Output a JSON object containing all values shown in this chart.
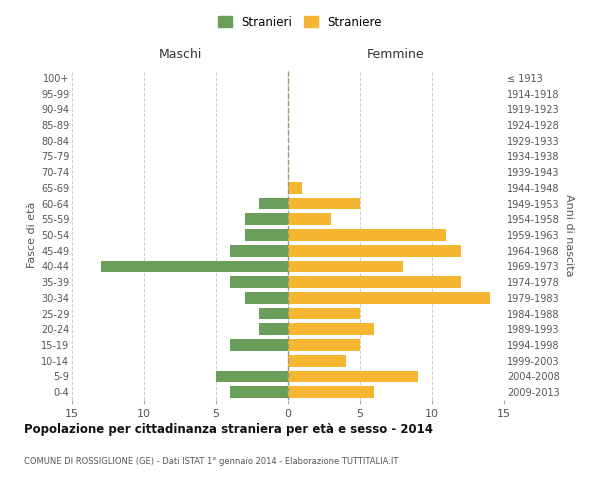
{
  "age_groups": [
    "0-4",
    "5-9",
    "10-14",
    "15-19",
    "20-24",
    "25-29",
    "30-34",
    "35-39",
    "40-44",
    "45-49",
    "50-54",
    "55-59",
    "60-64",
    "65-69",
    "70-74",
    "75-79",
    "80-84",
    "85-89",
    "90-94",
    "95-99",
    "100+"
  ],
  "birth_years": [
    "2009-2013",
    "2004-2008",
    "1999-2003",
    "1994-1998",
    "1989-1993",
    "1984-1988",
    "1979-1983",
    "1974-1978",
    "1969-1973",
    "1964-1968",
    "1959-1963",
    "1954-1958",
    "1949-1953",
    "1944-1948",
    "1939-1943",
    "1934-1938",
    "1929-1933",
    "1924-1928",
    "1919-1923",
    "1914-1918",
    "≤ 1913"
  ],
  "males": [
    4,
    5,
    0,
    4,
    2,
    2,
    3,
    4,
    13,
    4,
    3,
    3,
    2,
    0,
    0,
    0,
    0,
    0,
    0,
    0,
    0
  ],
  "females": [
    6,
    9,
    4,
    5,
    6,
    5,
    14,
    12,
    8,
    12,
    11,
    3,
    5,
    1,
    0,
    0,
    0,
    0,
    0,
    0,
    0
  ],
  "male_color": "#6a9e5b",
  "female_color": "#f5b731",
  "title": "Popolazione per cittadinanza straniera per età e sesso - 2014",
  "subtitle": "COMUNE DI ROSSIGLIONE (GE) - Dati ISTAT 1° gennaio 2014 - Elaborazione TUTTITALIA.IT",
  "xlabel_left": "Maschi",
  "xlabel_right": "Femmine",
  "ylabel_left": "Fasce di età",
  "ylabel_right": "Anni di nascita",
  "legend_male": "Stranieri",
  "legend_female": "Straniere",
  "xlim": 15,
  "bg_color": "#ffffff",
  "grid_color": "#cccccc",
  "bar_height": 0.75
}
